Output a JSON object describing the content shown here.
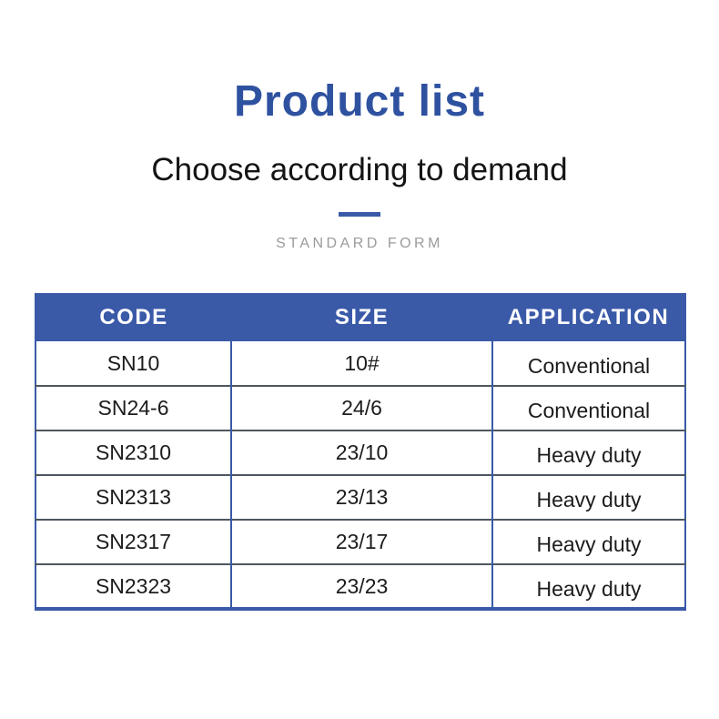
{
  "page": {
    "title": "Product list",
    "subtitle": "Choose according to demand",
    "section_label": "STANDARD FORM"
  },
  "colors": {
    "title_blue": "#2f52a0",
    "header_blue": "#3a5aa8",
    "row_divider_gray": "#4d5761",
    "section_label_gray": "#9b9b9b",
    "body_text": "#1c1c1c"
  },
  "table": {
    "headers": [
      "CODE",
      "SIZE",
      "APPLICATION"
    ],
    "rows": [
      {
        "code": "SN10",
        "size": "10#",
        "application": "Conventional"
      },
      {
        "code": "SN24-6",
        "size": "24/6",
        "application": "Conventional"
      },
      {
        "code": "SN2310",
        "size": "23/10",
        "application": "Heavy duty"
      },
      {
        "code": "SN2313",
        "size": "23/13",
        "application": "Heavy duty"
      },
      {
        "code": "SN2317",
        "size": "23/17",
        "application": "Heavy duty"
      },
      {
        "code": "SN2323",
        "size": "23/23",
        "application": "Heavy duty"
      }
    ]
  }
}
